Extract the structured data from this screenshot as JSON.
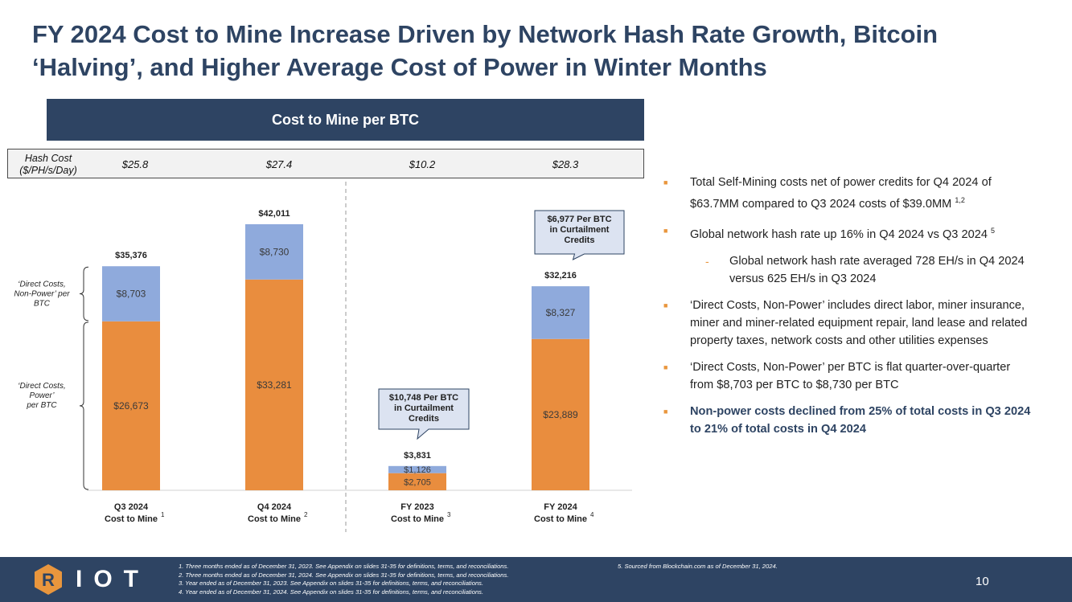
{
  "title": "FY 2024 Cost to Mine Increase Driven by Network Hash Rate Growth, Bitcoin ‘Halving’, and Higher Average Cost of Power in Winter Months",
  "chart_header": "Cost to Mine per BTC",
  "hash_cost": {
    "label": "Hash Cost ($/PH/s/Day)",
    "values": [
      "$25.8",
      "$27.4",
      "$10.2",
      "$28.3"
    ]
  },
  "chart_data": {
    "type": "bar",
    "stacked": true,
    "title": "Cost to Mine per BTC",
    "categories": [
      "Q3 2024 Cost to Mine",
      "Q4 2024 Cost to Mine",
      "FY 2023 Cost to Mine",
      "FY 2024 Cost to Mine"
    ],
    "category_lines": [
      [
        "Q3 2024",
        "Cost to Mine"
      ],
      [
        "Q4 2024",
        "Cost to Mine"
      ],
      [
        "FY 2023",
        "Cost to Mine"
      ],
      [
        "FY 2024",
        "Cost to Mine"
      ]
    ],
    "category_notes": [
      "1",
      "2",
      "3",
      "4"
    ],
    "series": [
      {
        "name": "Direct Costs, Power per BTC",
        "color": "#e98d3e",
        "values": [
          26673,
          33281,
          2705,
          23889
        ],
        "labels": [
          "$26,673",
          "$33,281",
          "$2,705",
          "$23,889"
        ]
      },
      {
        "name": "Direct Costs, Non-Power per BTC",
        "color": "#8faadc",
        "values": [
          8703,
          8730,
          1126,
          8327
        ],
        "labels": [
          "$8,703",
          "$8,730",
          "$1,126",
          "$8,327"
        ]
      }
    ],
    "totals": [
      35376,
      42011,
      3831,
      32216
    ],
    "total_labels": [
      "$35,376",
      "$42,011",
      "$3,831",
      "$32,216"
    ],
    "ylim": [
      0,
      46000
    ],
    "annotations": [
      {
        "category_index": 2,
        "lines": [
          "$10,748 Per BTC",
          "in Curtailment",
          "Credits"
        ]
      },
      {
        "category_index": 3,
        "lines": [
          "$6,977 Per BTC",
          "in Curtailment",
          "Credits"
        ]
      }
    ],
    "bracket_labels": {
      "non_power": [
        "‘Direct Costs,",
        "Non-Power’ per",
        "BTC"
      ],
      "power": [
        "‘Direct Costs,",
        "Power’",
        "per BTC"
      ]
    }
  },
  "bullets": [
    {
      "text": "Total Self-Mining costs net of power credits for Q4 2024 of $63.7MM compared to Q3 2024 costs of $39.0MM ",
      "sup": "1,2",
      "level": 1,
      "bold": false
    },
    {
      "text": "Global network hash rate up 16% in Q4 2024 vs Q3 2024 ",
      "sup": "5",
      "level": 1,
      "bold": false
    },
    {
      "text": "Global network hash rate averaged 728 EH/s in Q4 2024 versus 625 EH/s in Q3 2024",
      "sup": "",
      "level": 2,
      "bold": false
    },
    {
      "text": "‘Direct Costs, Non-Power’ includes direct labor, miner insurance, miner and miner-related equipment repair, land lease and related property taxes, network costs and other utilities expenses",
      "sup": "",
      "level": 1,
      "bold": false
    },
    {
      "text": "‘Direct Costs, Non-Power’ per BTC is flat quarter-over-quarter from $8,703 per BTC to $8,730 per BTC",
      "sup": "",
      "level": 1,
      "bold": false
    },
    {
      "text": "Non-power costs declined from 25% of total costs in Q3 2024 to 21% of total costs in Q4 2024",
      "sup": "",
      "level": 1,
      "bold": true
    }
  ],
  "footer": {
    "logo_letter": "R",
    "logo_text": "IOT",
    "notes": [
      "1.      Three months ended as of December 31, 2023. See Appendix on slides 31-35 for definitions, terms, and reconciliations.",
      "2.      Three months ended as of December 31, 2024. See Appendix on slides 31-35 for definitions, terms, and reconciliations.",
      "3.      Year ended as of December 31, 2023. See Appendix on slides 31-35 for definitions, terms, and reconciliations.",
      "4.      Year ended as of December 31, 2024. See Appendix on slides 31-35 for definitions, terms, and reconciliations."
    ],
    "note5": "5.      Sourced from Blockchain.com as of December 31, 2024.",
    "page_number": "10"
  }
}
